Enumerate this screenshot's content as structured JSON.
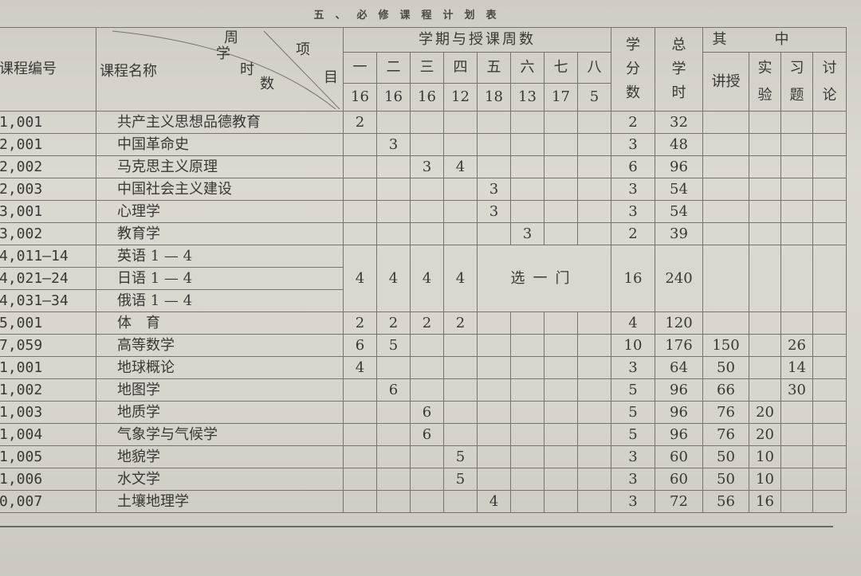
{
  "title": "五、必修课程计划表",
  "header": {
    "code": "课程编号",
    "name": "课程名称",
    "diagonal": [
      "周",
      "学",
      "时",
      "数",
      "项",
      "目"
    ],
    "semester_group": "学期与授课周数",
    "semesters": [
      {
        "label": "一",
        "weeks": "16"
      },
      {
        "label": "二",
        "weeks": "16"
      },
      {
        "label": "三",
        "weeks": "16"
      },
      {
        "label": "四",
        "weeks": "12"
      },
      {
        "label": "五",
        "weeks": "18"
      },
      {
        "label": "六",
        "weeks": "13"
      },
      {
        "label": "七",
        "weeks": "17"
      },
      {
        "label": "八",
        "weeks": "5"
      }
    ],
    "credits": "学分数",
    "total_hours": "总学时",
    "breakdown_group": "其中",
    "breakdown": [
      "讲授",
      "实验",
      "习题",
      "讨论"
    ]
  },
  "rows": [
    {
      "code": "1,001",
      "name": "共产主义思想品德教育",
      "sem": [
        "2",
        "",
        "",
        "",
        "",
        "",
        "",
        ""
      ],
      "credits": "2",
      "hours": "32",
      "b": [
        "",
        "",
        "",
        ""
      ]
    },
    {
      "code": "2,001",
      "name": "中国革命史",
      "sem": [
        "",
        "3",
        "",
        "",
        "",
        "",
        "",
        ""
      ],
      "credits": "3",
      "hours": "48",
      "b": [
        "",
        "",
        "",
        ""
      ]
    },
    {
      "code": "2,002",
      "name": "马克思主义原理",
      "sem": [
        "",
        "",
        "3",
        "4",
        "",
        "",
        "",
        ""
      ],
      "credits": "6",
      "hours": "96",
      "b": [
        "",
        "",
        "",
        ""
      ]
    },
    {
      "code": "2,003",
      "name": "中国社会主义建设",
      "sem": [
        "",
        "",
        "",
        "",
        "3",
        "",
        "",
        ""
      ],
      "credits": "3",
      "hours": "54",
      "b": [
        "",
        "",
        "",
        ""
      ]
    },
    {
      "code": "3,001",
      "name": "心理学",
      "sem": [
        "",
        "",
        "",
        "",
        "3",
        "",
        "",
        ""
      ],
      "credits": "3",
      "hours": "54",
      "b": [
        "",
        "",
        "",
        ""
      ]
    },
    {
      "code": "3,002",
      "name": "教育学",
      "sem": [
        "",
        "",
        "",
        "",
        "",
        "3",
        "",
        ""
      ],
      "credits": "2",
      "hours": "39",
      "b": [
        "",
        "",
        "",
        ""
      ]
    },
    {
      "code": "4,011—14",
      "name": "英语 1 — 4",
      "group_start": true
    },
    {
      "code": "4,021—24",
      "name": "日语 1 — 4",
      "group": true
    },
    {
      "code": "4,031—34",
      "name": "俄语 1 — 4",
      "group": true
    },
    {
      "code": "5,001",
      "name": "体　育",
      "sem": [
        "2",
        "2",
        "2",
        "2",
        "",
        "",
        "",
        ""
      ],
      "credits": "4",
      "hours": "120",
      "b": [
        "",
        "",
        "",
        ""
      ]
    },
    {
      "code": "7,059",
      "name": "高等数学",
      "sem": [
        "6",
        "5",
        "",
        "",
        "",
        "",
        "",
        ""
      ],
      "credits": "10",
      "hours": "176",
      "b": [
        "150",
        "",
        "26",
        ""
      ]
    },
    {
      "code": "1,001",
      "name": "地球概论",
      "sem": [
        "4",
        "",
        "",
        "",
        "",
        "",
        "",
        ""
      ],
      "credits": "3",
      "hours": "64",
      "b": [
        "50",
        "",
        "14",
        ""
      ]
    },
    {
      "code": "1,002",
      "name": "地图学",
      "sem": [
        "",
        "6",
        "",
        "",
        "",
        "",
        "",
        ""
      ],
      "credits": "5",
      "hours": "96",
      "b": [
        "66",
        "",
        "30",
        ""
      ]
    },
    {
      "code": "1,003",
      "name": "地质学",
      "sem": [
        "",
        "",
        "6",
        "",
        "",
        "",
        "",
        ""
      ],
      "credits": "5",
      "hours": "96",
      "b": [
        "76",
        "20",
        "",
        ""
      ]
    },
    {
      "code": "1,004",
      "name": "气象学与气候学",
      "sem": [
        "",
        "",
        "6",
        "",
        "",
        "",
        "",
        ""
      ],
      "credits": "5",
      "hours": "96",
      "b": [
        "76",
        "20",
        "",
        ""
      ]
    },
    {
      "code": "1,005",
      "name": "地貌学",
      "sem": [
        "",
        "",
        "",
        "5",
        "",
        "",
        "",
        ""
      ],
      "credits": "3",
      "hours": "60",
      "b": [
        "50",
        "10",
        "",
        ""
      ]
    },
    {
      "code": "1,006",
      "name": "水文学",
      "sem": [
        "",
        "",
        "",
        "5",
        "",
        "",
        "",
        ""
      ],
      "credits": "3",
      "hours": "60",
      "b": [
        "50",
        "10",
        "",
        ""
      ]
    },
    {
      "code": "0,007",
      "name": "土壤地理学",
      "sem": [
        "",
        "",
        "",
        "",
        "4",
        "",
        "",
        ""
      ],
      "credits": "3",
      "hours": "72",
      "b": [
        "56",
        "16",
        "",
        ""
      ]
    }
  ],
  "language_group": {
    "sem": [
      "4",
      "4",
      "4",
      "4"
    ],
    "note": "选一门",
    "credits": "16",
    "hours": "240"
  }
}
